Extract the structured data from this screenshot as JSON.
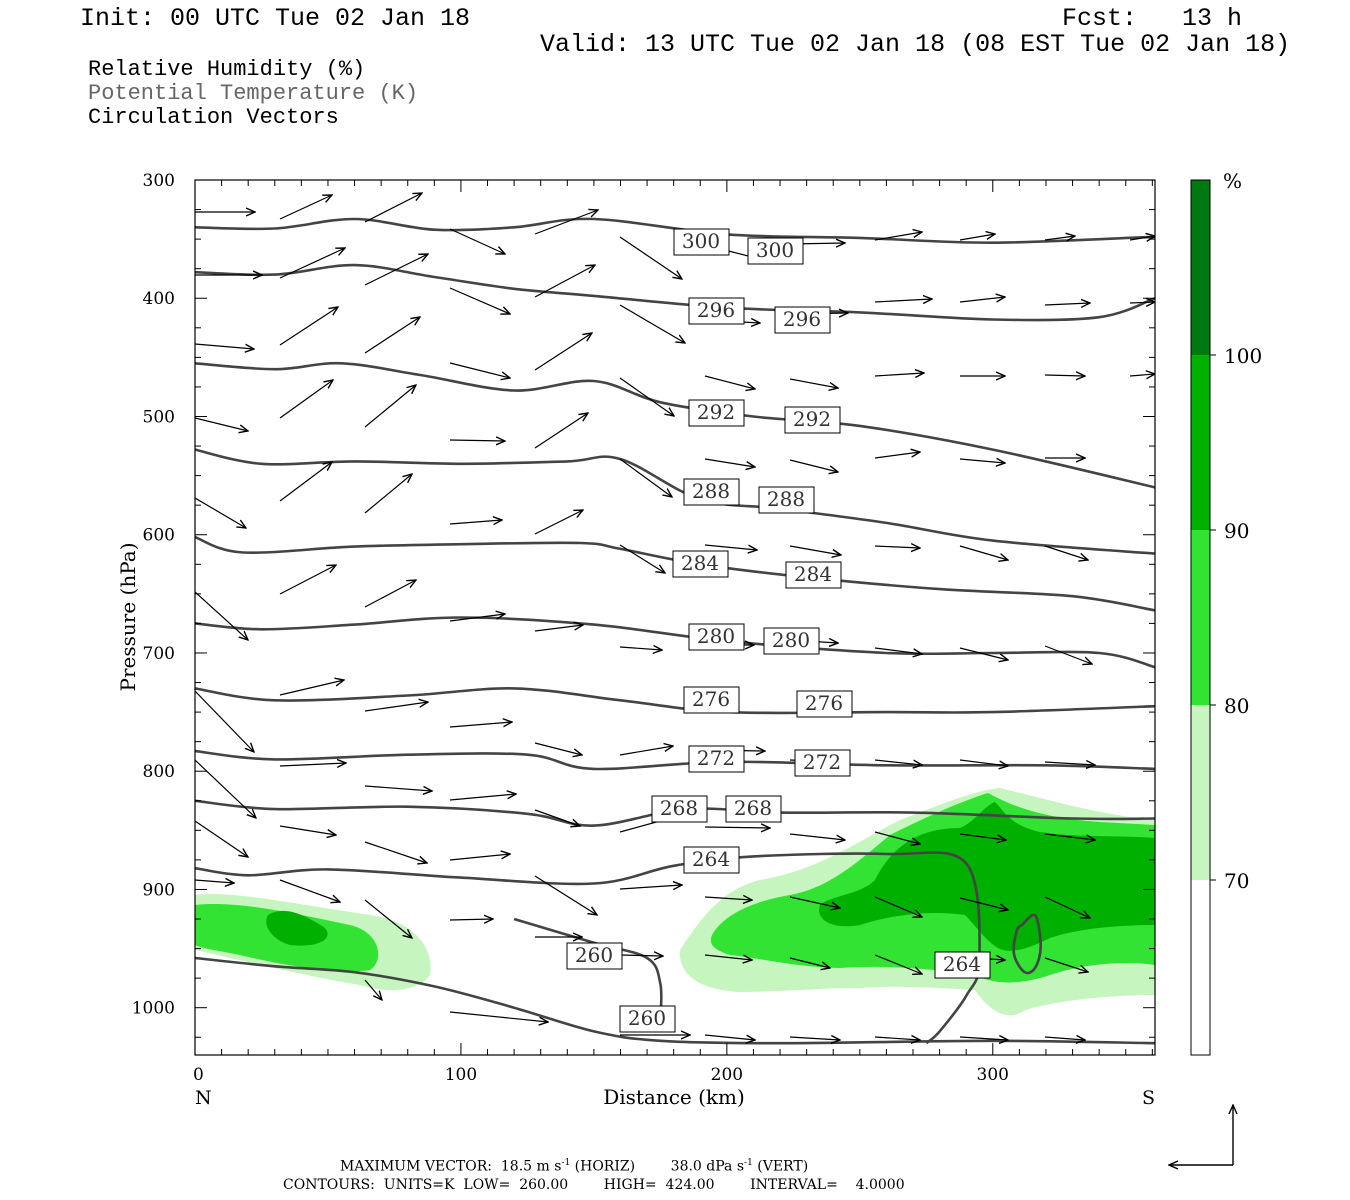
{
  "header": {
    "init": "Init: 00 UTC Tue 02 Jan 18",
    "fcst": "Fcst:   13 h",
    "valid": "Valid: 13 UTC Tue 02 Jan 18 (08 EST Tue 02 Jan 18)"
  },
  "legend_lines": [
    {
      "text": "Relative Humidity (%)",
      "color": "#000000"
    },
    {
      "text": "Potential Temperature (K)",
      "color": "#666666"
    },
    {
      "text": "Circulation Vectors",
      "color": "#000000"
    }
  ],
  "colorbar": {
    "unit_label": "%",
    "ticks": [
      "70",
      "80",
      "90",
      "100"
    ],
    "colors": [
      "#ffffff",
      "#c6f5c0",
      "#33e333",
      "#00b000",
      "#007a10"
    ]
  },
  "footer": {
    "vector_line": "MAXIMUM VECTOR:  18.5 m s",
    "vector_sup1": "-1",
    "vector_mid": " (HORIZ)        38.0 dPa s",
    "vector_sup2": "-1",
    "vector_end": " (VERT)",
    "contours_line": "CONTOURS:  UNITS=K  LOW=  260.00        HIGH=  424.00        INTERVAL=    4.0000"
  },
  "chart_data": {
    "type": "contour",
    "xlabel": "Distance (km)",
    "ylabel": "Pressure (hPa)",
    "x_ticks": [
      "0",
      "100",
      "200",
      "300"
    ],
    "x_end_labels": {
      "left": "N",
      "right": "S"
    },
    "y_ticks": [
      "300",
      "400",
      "500",
      "600",
      "700",
      "800",
      "900",
      "1000"
    ],
    "xlim": [
      0,
      361
    ],
    "ylim": [
      300,
      1040
    ],
    "theta_contours": [
      {
        "level": 300,
        "points": [
          [
            0,
            340
          ],
          [
            30,
            341
          ],
          [
            60,
            333
          ],
          [
            90,
            342
          ],
          [
            120,
            340
          ],
          [
            150,
            333
          ],
          [
            200,
            346
          ],
          [
            250,
            349
          ],
          [
            300,
            353
          ],
          [
            361,
            348
          ]
        ]
      },
      {
        "level": 296,
        "points": [
          [
            0,
            378
          ],
          [
            30,
            380
          ],
          [
            60,
            372
          ],
          [
            90,
            382
          ],
          [
            120,
            392
          ],
          [
            150,
            398
          ],
          [
            200,
            408
          ],
          [
            250,
            412
          ],
          [
            300,
            418
          ],
          [
            340,
            416
          ],
          [
            361,
            400
          ]
        ]
      },
      {
        "level": 292,
        "points": [
          [
            0,
            455
          ],
          [
            30,
            460
          ],
          [
            55,
            455
          ],
          [
            85,
            465
          ],
          [
            120,
            478
          ],
          [
            150,
            470
          ],
          [
            175,
            488
          ],
          [
            210,
            500
          ],
          [
            250,
            508
          ],
          [
            300,
            528
          ],
          [
            361,
            560
          ]
        ]
      },
      {
        "level": 288,
        "points": [
          [
            0,
            528
          ],
          [
            25,
            540
          ],
          [
            60,
            538
          ],
          [
            100,
            540
          ],
          [
            140,
            538
          ],
          [
            160,
            536
          ],
          [
            190,
            570
          ],
          [
            220,
            578
          ],
          [
            260,
            590
          ],
          [
            300,
            605
          ],
          [
            361,
            616
          ]
        ]
      },
      {
        "level": 284,
        "points": [
          [
            0,
            602
          ],
          [
            18,
            615
          ],
          [
            60,
            610
          ],
          [
            100,
            608
          ],
          [
            145,
            607
          ],
          [
            160,
            612
          ],
          [
            190,
            625
          ],
          [
            230,
            636
          ],
          [
            280,
            646
          ],
          [
            330,
            652
          ],
          [
            361,
            664
          ]
        ]
      },
      {
        "level": 280,
        "points": [
          [
            0,
            675
          ],
          [
            25,
            680
          ],
          [
            60,
            676
          ],
          [
            100,
            670
          ],
          [
            150,
            676
          ],
          [
            200,
            690
          ],
          [
            260,
            700
          ],
          [
            300,
            700
          ],
          [
            340,
            700
          ],
          [
            361,
            712
          ]
        ]
      },
      {
        "level": 276,
        "points": [
          [
            0,
            730
          ],
          [
            30,
            740
          ],
          [
            80,
            736
          ],
          [
            120,
            730
          ],
          [
            160,
            740
          ],
          [
            200,
            750
          ],
          [
            260,
            750
          ],
          [
            300,
            750
          ],
          [
            361,
            745
          ]
        ]
      },
      {
        "level": 272,
        "points": [
          [
            0,
            783
          ],
          [
            30,
            790
          ],
          [
            80,
            786
          ],
          [
            125,
            786
          ],
          [
            150,
            798
          ],
          [
            200,
            792
          ],
          [
            260,
            795
          ],
          [
            320,
            795
          ],
          [
            361,
            798
          ]
        ]
      },
      {
        "level": 268,
        "points": [
          [
            0,
            825
          ],
          [
            30,
            832
          ],
          [
            80,
            830
          ],
          [
            125,
            836
          ],
          [
            150,
            846
          ],
          [
            185,
            832
          ],
          [
            220,
            835
          ],
          [
            270,
            835
          ],
          [
            330,
            840
          ],
          [
            361,
            840
          ]
        ]
      },
      {
        "level": 264,
        "points": [
          [
            0,
            882
          ],
          [
            20,
            888
          ],
          [
            50,
            883
          ],
          [
            100,
            890
          ],
          [
            150,
            895
          ],
          [
            180,
            880
          ],
          [
            210,
            872
          ],
          [
            260,
            870
          ],
          [
            290,
            878
          ],
          [
            295,
            960
          ],
          [
            290,
            990
          ],
          [
            280,
            1020
          ],
          [
            275,
            1030
          ]
        ]
      },
      {
        "level": 264,
        "points": [
          [
            311,
            930
          ],
          [
            316,
            922
          ],
          [
            318,
            948
          ],
          [
            316,
            966
          ],
          [
            312,
            970
          ],
          [
            308,
            955
          ],
          [
            309,
            935
          ],
          [
            311,
            930
          ]
        ]
      },
      {
        "level": 260,
        "points": [
          [
            0,
            958
          ],
          [
            30,
            965
          ],
          [
            60,
            970
          ],
          [
            90,
            982
          ],
          [
            120,
            1000
          ],
          [
            150,
            1020
          ],
          [
            175,
            1028
          ],
          [
            220,
            1030
          ],
          [
            300,
            1028
          ],
          [
            361,
            1030
          ]
        ]
      },
      {
        "level": 260,
        "points": [
          [
            120,
            925
          ],
          [
            150,
            945
          ],
          [
            170,
            958
          ],
          [
            175,
            980
          ],
          [
            175,
            1010
          ]
        ]
      }
    ]
  }
}
